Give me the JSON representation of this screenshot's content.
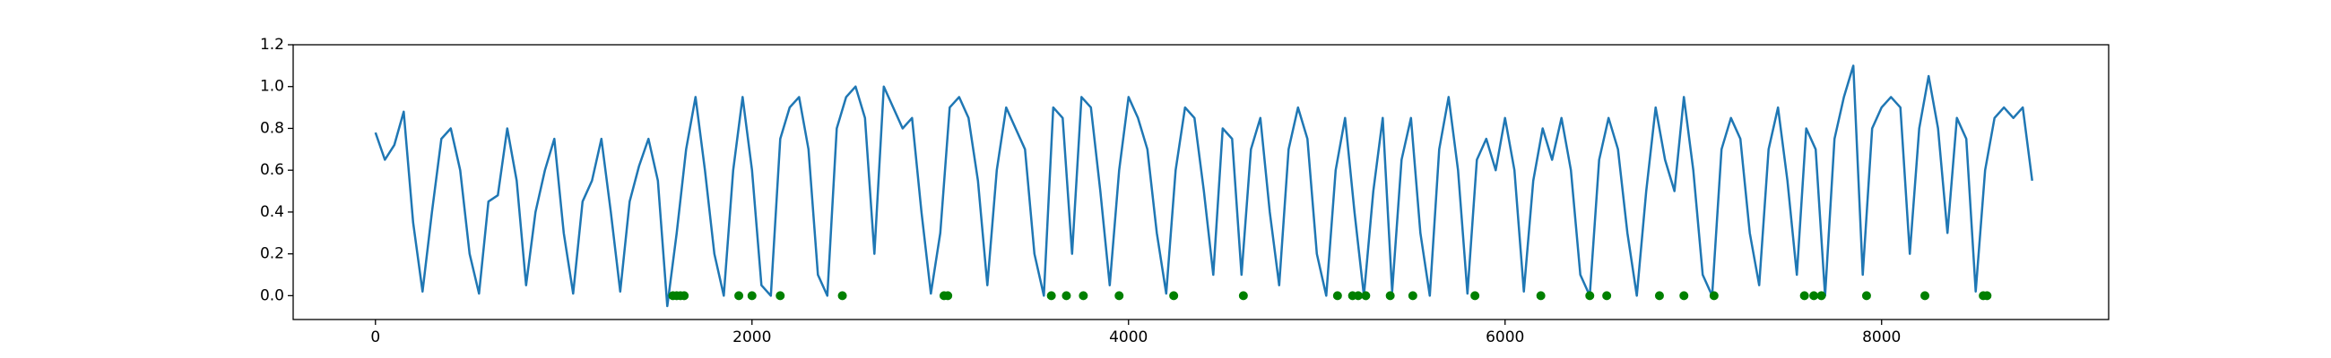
{
  "chart_data": {
    "type": "line",
    "xlim": [
      -437,
      9206
    ],
    "ylim": [
      -0.114,
      1.2
    ],
    "xticks": [
      0,
      2000,
      4000,
      6000,
      8000
    ],
    "yticks": [
      {
        "value": 0,
        "label": "0.0"
      },
      0.2,
      0.4,
      0.6,
      0.8,
      {
        "value": 1,
        "label": "1.0"
      },
      1.2
    ],
    "series": [
      {
        "type": "line",
        "color": "#1f77b4",
        "x": [
          0,
          50,
          100,
          150,
          200,
          250,
          300,
          350,
          400,
          450,
          500,
          550,
          600,
          650,
          700,
          750,
          800,
          850,
          900,
          950,
          1000,
          1050,
          1100,
          1150,
          1200,
          1250,
          1300,
          1350,
          1400,
          1450,
          1500,
          1550,
          1600,
          1650,
          1700,
          1750,
          1800,
          1850,
          1900,
          1950,
          2000,
          2050,
          2100,
          2150,
          2200,
          2250,
          2300,
          2350,
          2400,
          2450,
          2500,
          2550,
          2600,
          2650,
          2700,
          2750,
          2800,
          2850,
          2900,
          2950,
          3000,
          3050,
          3100,
          3150,
          3200,
          3250,
          3300,
          3350,
          3400,
          3450,
          3500,
          3550,
          3600,
          3650,
          3700,
          3750,
          3800,
          3850,
          3900,
          3950,
          4000,
          4050,
          4100,
          4150,
          4200,
          4250,
          4300,
          4350,
          4400,
          4450,
          4500,
          4550,
          4600,
          4650,
          4700,
          4750,
          4800,
          4850,
          4900,
          4950,
          5000,
          5050,
          5100,
          5150,
          5200,
          5250,
          5300,
          5350,
          5400,
          5450,
          5500,
          5550,
          5600,
          5650,
          5700,
          5750,
          5800,
          5850,
          5900,
          5950,
          6000,
          6050,
          6100,
          6150,
          6200,
          6250,
          6300,
          6350,
          6400,
          6450,
          6500,
          6550,
          6600,
          6650,
          6700,
          6750,
          6800,
          6850,
          6900,
          6950,
          7000,
          7050,
          7100,
          7150,
          7200,
          7250,
          7300,
          7350,
          7400,
          7450,
          7500,
          7550,
          7600,
          7650,
          7700,
          7750,
          7800,
          7850,
          7900,
          7950,
          8000,
          8050,
          8100,
          8150,
          8200,
          8250,
          8300,
          8350,
          8400,
          8450,
          8500,
          8550,
          8600,
          8650,
          8700,
          8750,
          8800
        ],
        "values": [
          0.78,
          0.65,
          0.72,
          0.88,
          0.35,
          0.02,
          0.4,
          0.75,
          0.8,
          0.6,
          0.2,
          0.01,
          0.45,
          0.48,
          0.8,
          0.55,
          0.05,
          0.4,
          0.6,
          0.75,
          0.3,
          0.01,
          0.45,
          0.55,
          0.75,
          0.4,
          0.02,
          0.45,
          0.62,
          0.75,
          0.55,
          -0.05,
          0.3,
          0.7,
          0.95,
          0.6,
          0.2,
          0.0,
          0.6,
          0.95,
          0.6,
          0.05,
          0.0,
          0.75,
          0.9,
          0.95,
          0.7,
          0.1,
          0.0,
          0.8,
          0.95,
          1.0,
          0.85,
          0.2,
          1.0,
          0.9,
          0.8,
          0.85,
          0.4,
          0.01,
          0.3,
          0.9,
          0.95,
          0.85,
          0.55,
          0.05,
          0.6,
          0.9,
          0.8,
          0.7,
          0.2,
          0.0,
          0.9,
          0.85,
          0.2,
          0.95,
          0.9,
          0.5,
          0.05,
          0.6,
          0.95,
          0.85,
          0.7,
          0.3,
          0.01,
          0.6,
          0.9,
          0.85,
          0.5,
          0.1,
          0.8,
          0.75,
          0.1,
          0.7,
          0.85,
          0.4,
          0.05,
          0.7,
          0.9,
          0.75,
          0.2,
          0.0,
          0.6,
          0.85,
          0.4,
          0.0,
          0.5,
          0.85,
          0.02,
          0.65,
          0.85,
          0.3,
          0.0,
          0.7,
          0.95,
          0.6,
          0.01,
          0.65,
          0.75,
          0.6,
          0.85,
          0.6,
          0.02,
          0.55,
          0.8,
          0.65,
          0.85,
          0.6,
          0.1,
          0.0,
          0.65,
          0.85,
          0.7,
          0.3,
          0.0,
          0.5,
          0.9,
          0.65,
          0.5,
          0.95,
          0.6,
          0.1,
          0.0,
          0.7,
          0.85,
          0.75,
          0.3,
          0.05,
          0.7,
          0.9,
          0.55,
          0.1,
          0.8,
          0.7,
          0.0,
          0.75,
          0.95,
          1.1,
          0.1,
          0.8,
          0.9,
          0.95,
          0.9,
          0.2,
          0.8,
          1.05,
          0.8,
          0.3,
          0.85,
          0.75,
          0.02,
          0.6,
          0.85,
          0.9,
          0.85,
          0.9,
          0.55
        ]
      },
      {
        "type": "scatter",
        "color": "#008000",
        "x": [
          1580,
          1600,
          1620,
          1640,
          1930,
          2000,
          2150,
          2480,
          3020,
          3040,
          3590,
          3670,
          3760,
          3950,
          4240,
          4610,
          5110,
          5190,
          5220,
          5260,
          5390,
          5510,
          5840,
          6190,
          6450,
          6540,
          6820,
          6950,
          7110,
          7590,
          7640,
          7680,
          7920,
          8230,
          8540,
          8560
        ],
        "values": [
          0,
          0,
          0,
          0,
          0,
          0,
          0,
          0,
          0,
          0,
          0,
          0,
          0,
          0,
          0,
          0,
          0,
          0,
          0,
          0,
          0,
          0,
          0,
          0,
          0,
          0,
          0,
          0,
          0,
          0,
          0,
          0,
          0,
          0,
          0,
          0
        ]
      }
    ]
  }
}
